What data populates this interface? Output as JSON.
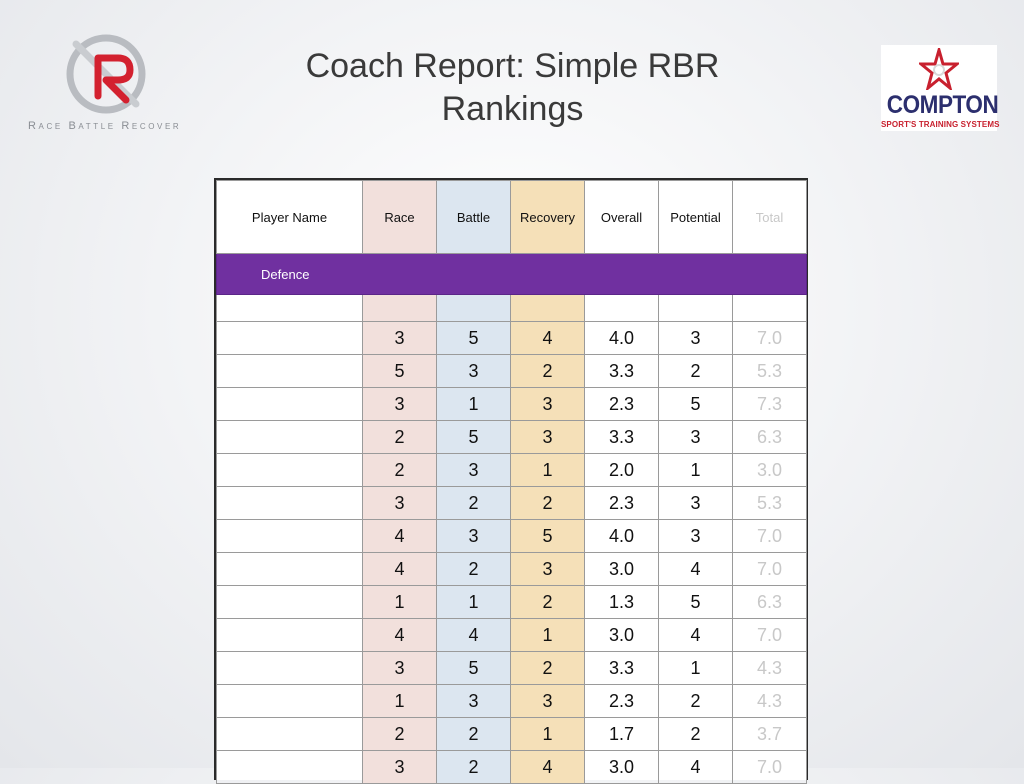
{
  "header": {
    "title": "Coach Report: Simple RBR Rankings",
    "left_logo_tagline": "Race Battle Recover",
    "right_logo_brand": "COMPTON",
    "right_logo_sub": "SPORT'S TRAINING SYSTEMS"
  },
  "colors": {
    "race": "#f2e0dc",
    "battle": "#dce6f0",
    "recovery": "#f5e0b8",
    "section": "#7030a0",
    "total_text": "#c8c8c8"
  },
  "table": {
    "columns": [
      "Player Name",
      "Race",
      "Battle",
      "Recovery",
      "Overall",
      "Potential",
      "Total"
    ],
    "section_label": "Defence",
    "rows": [
      [
        "",
        "3",
        "5",
        "4",
        "4.0",
        "3",
        "7.0"
      ],
      [
        "",
        "5",
        "3",
        "2",
        "3.3",
        "2",
        "5.3"
      ],
      [
        "",
        "3",
        "1",
        "3",
        "2.3",
        "5",
        "7.3"
      ],
      [
        "",
        "2",
        "5",
        "3",
        "3.3",
        "3",
        "6.3"
      ],
      [
        "",
        "2",
        "3",
        "1",
        "2.0",
        "1",
        "3.0"
      ],
      [
        "",
        "3",
        "2",
        "2",
        "2.3",
        "3",
        "5.3"
      ],
      [
        "",
        "4",
        "3",
        "5",
        "4.0",
        "3",
        "7.0"
      ],
      [
        "",
        "4",
        "2",
        "3",
        "3.0",
        "4",
        "7.0"
      ],
      [
        "",
        "1",
        "1",
        "2",
        "1.3",
        "5",
        "6.3"
      ],
      [
        "",
        "4",
        "4",
        "1",
        "3.0",
        "4",
        "7.0"
      ],
      [
        "",
        "3",
        "5",
        "2",
        "3.3",
        "1",
        "4.3"
      ],
      [
        "",
        "1",
        "3",
        "3",
        "2.3",
        "2",
        "4.3"
      ],
      [
        "",
        "2",
        "2",
        "1",
        "1.7",
        "2",
        "3.7"
      ],
      [
        "",
        "3",
        "2",
        "4",
        "3.0",
        "4",
        "7.0"
      ]
    ]
  }
}
